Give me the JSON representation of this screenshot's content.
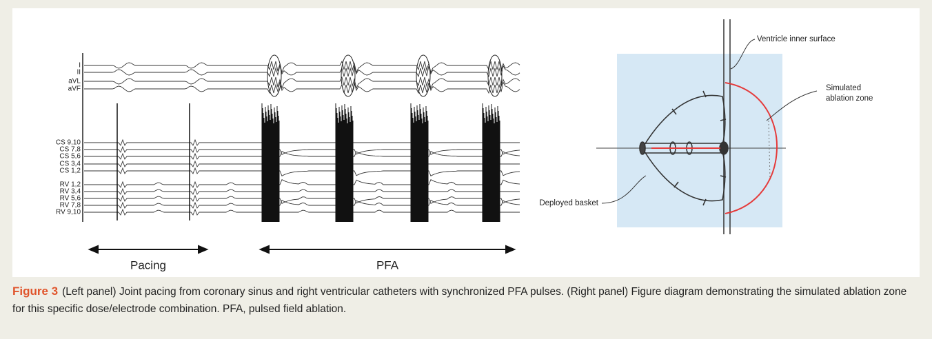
{
  "figure": {
    "ecg_panel": {
      "leads": [
        "I",
        "II",
        "aVL",
        "aVF",
        "CS 9,10",
        "CS 7,8",
        "CS 5,6",
        "CS 3,4",
        "CS 1,2",
        "RV 1,2",
        "RV 3,4",
        "RV 5,6",
        "RV 7,8",
        "RV 9,10"
      ],
      "segments": [
        "Pacing",
        "PFA"
      ]
    },
    "diagram": {
      "ventricle_surface": "Ventricle inner surface",
      "ablation_zone": [
        "Simulated",
        "ablation zone"
      ],
      "basket": "Deployed basket"
    },
    "caption": {
      "label": "Figure 3",
      "text": "(Left panel) Joint pacing from coronary sinus and right ventricular catheters with synchronized PFA pulses. (Right panel) Figure diagram demonstrating the simulated ablation zone for this specific dose/electrode combination. PFA, pulsed field ablation."
    }
  }
}
